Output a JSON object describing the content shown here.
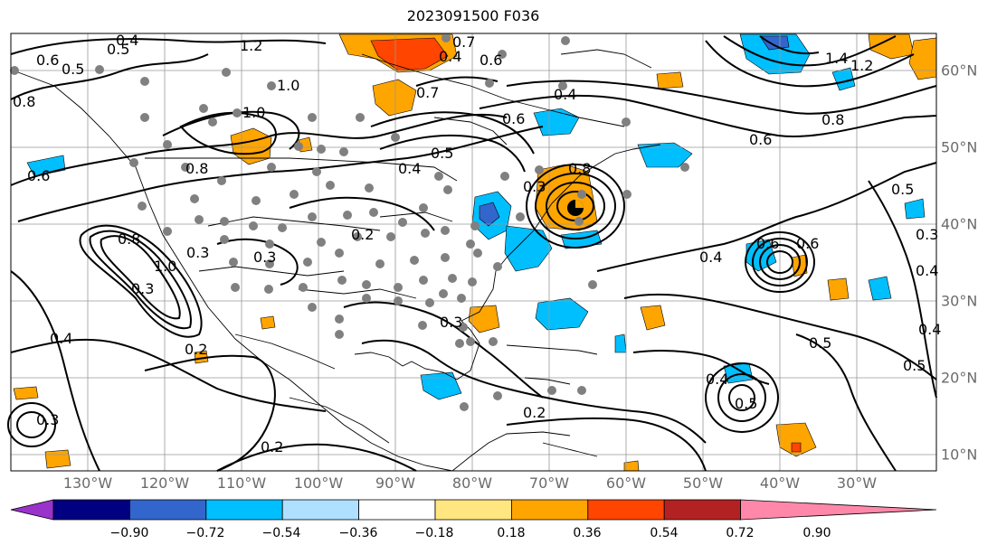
{
  "title": "2023091500 F036",
  "lon_ticks": [
    "130°W",
    "120°W",
    "110°W",
    "100°W",
    "90°W",
    "80°W",
    "70°W",
    "60°W",
    "50°W",
    "40°W",
    "30°W"
  ],
  "lat_ticks": [
    "60°N",
    "50°N",
    "40°N",
    "30°N",
    "20°N",
    "10°N"
  ],
  "colorbar": {
    "labels": [
      "−0.90",
      "−0.72",
      "−0.54",
      "−0.36",
      "−0.18",
      "0.18",
      "0.36",
      "0.54",
      "0.72",
      "0.90"
    ],
    "colors": [
      "#9933cc",
      "#000080",
      "#3366cc",
      "#00bfff",
      "#b0e0ff",
      "#ffffff",
      "#ffe680",
      "#ffa500",
      "#ff4500",
      "#b22222",
      "#ff88aa"
    ]
  },
  "contour_labels": [
    "0.4",
    "0.5",
    "0.6",
    "0.5",
    "1.0",
    "1.2",
    "1.0",
    "0.7",
    "0.6",
    "0.4",
    "0.7",
    "0.6",
    "0.5",
    "0.4",
    "0.8",
    "0.6",
    "1.4",
    "1.2",
    "0.8",
    "0.6",
    "0.5",
    "0.3",
    "0.4",
    "0.8",
    "1.0",
    "0.3",
    "0.3",
    "0.2",
    "0.4",
    "0.2",
    "0.3",
    "0.4",
    "0.5",
    "0.4",
    "0.5",
    "0.3",
    "0.2",
    "0.2",
    "0.3",
    "0.4",
    "0.5",
    "0.6",
    "0.8",
    "0.3",
    "0.4",
    "0.8",
    "0.6"
  ]
}
